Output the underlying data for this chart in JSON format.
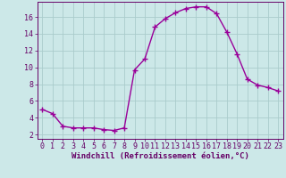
{
  "x": [
    0,
    1,
    2,
    3,
    4,
    5,
    6,
    7,
    8,
    9,
    10,
    11,
    12,
    13,
    14,
    15,
    16,
    17,
    18,
    19,
    20,
    21,
    22,
    23
  ],
  "y": [
    5.0,
    4.5,
    3.0,
    2.8,
    2.8,
    2.8,
    2.6,
    2.5,
    2.8,
    9.7,
    11.0,
    14.8,
    15.8,
    16.5,
    17.0,
    17.2,
    17.2,
    16.4,
    14.2,
    11.6,
    8.6,
    7.9,
    7.6,
    7.2
  ],
  "line_color": "#990099",
  "marker": "+",
  "markersize": 4,
  "markeredgewidth": 1.0,
  "linewidth": 1.0,
  "xlabel": "Windchill (Refroidissement éolien,°C)",
  "xlabel_fontsize": 6.5,
  "bg_color": "#cce8e8",
  "grid_color": "#aacccc",
  "ylim": [
    1.5,
    17.8
  ],
  "xlim": [
    -0.5,
    23.5
  ],
  "yticks": [
    2,
    4,
    6,
    8,
    10,
    12,
    14,
    16
  ],
  "xticks": [
    0,
    1,
    2,
    3,
    4,
    5,
    6,
    7,
    8,
    9,
    10,
    11,
    12,
    13,
    14,
    15,
    16,
    17,
    18,
    19,
    20,
    21,
    22,
    23
  ],
  "tick_fontsize": 6.0,
  "tick_color": "#660066",
  "axis_color": "#660066",
  "spine_color": "#660066"
}
